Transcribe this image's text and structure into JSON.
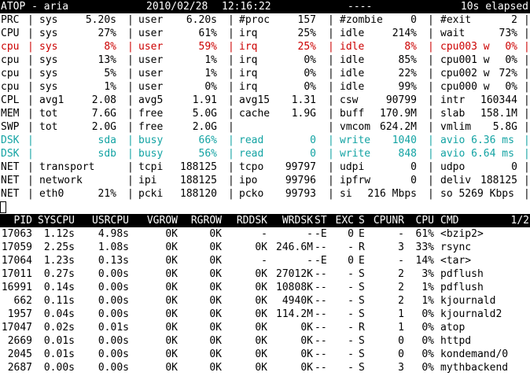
{
  "header": {
    "title": "ATOP - aria",
    "date": "2010/02/28",
    "time": "12:16:22",
    "dashes": "----",
    "elapsed": "10s elapsed"
  },
  "sys_rows": [
    {
      "cells": [
        "PRC",
        "|",
        "sys",
        "5.20s",
        "|",
        "user",
        "6.20s",
        "|",
        "#proc",
        "157",
        "|",
        "#zombie",
        "0",
        "|",
        "#exit",
        "2",
        "|"
      ],
      "tone": ""
    },
    {
      "cells": [
        "CPU",
        "|",
        "sys",
        "27%",
        "|",
        "user",
        "61%",
        "|",
        "irq",
        "25%",
        "|",
        "idle",
        "214%",
        "|",
        "wait",
        "73%",
        "|"
      ],
      "tone": ""
    },
    {
      "cells": [
        "cpu",
        "|",
        "sys",
        "8%",
        "|",
        "user",
        "59%",
        "|",
        "irq",
        "25%",
        "|",
        "idle",
        "8%",
        "|",
        "cpu003 w",
        "0%",
        "|"
      ],
      "tone": "red"
    },
    {
      "cells": [
        "cpu",
        "|",
        "sys",
        "13%",
        "|",
        "user",
        "1%",
        "|",
        "irq",
        "0%",
        "|",
        "idle",
        "85%",
        "|",
        "cpu001 w",
        "0%",
        "|"
      ],
      "tone": ""
    },
    {
      "cells": [
        "cpu",
        "|",
        "sys",
        "5%",
        "|",
        "user",
        "1%",
        "|",
        "irq",
        "0%",
        "|",
        "idle",
        "22%",
        "|",
        "cpu002 w",
        "72%",
        "|"
      ],
      "tone": ""
    },
    {
      "cells": [
        "cpu",
        "|",
        "sys",
        "1%",
        "|",
        "user",
        "0%",
        "|",
        "irq",
        "0%",
        "|",
        "idle",
        "99%",
        "|",
        "cpu000 w",
        "0%",
        "|"
      ],
      "tone": ""
    },
    {
      "cells": [
        "CPL",
        "|",
        "avg1",
        "2.08",
        "|",
        "avg5",
        "1.91",
        "|",
        "avg15",
        "1.31",
        "|",
        "csw",
        "90799",
        "|",
        "intr",
        "160344",
        "|"
      ],
      "tone": ""
    },
    {
      "cells": [
        "MEM",
        "|",
        "tot",
        "7.6G",
        "|",
        "free",
        "5.0G",
        "|",
        "cache",
        "1.9G",
        "|",
        "buff",
        "170.9M",
        "|",
        "slab",
        "158.1M",
        "|"
      ],
      "tone": ""
    },
    {
      "cells": [
        "SWP",
        "|",
        "tot",
        "2.0G",
        "|",
        "free",
        "2.0G",
        "|",
        "",
        "",
        "|",
        "vmcom",
        "624.2M",
        "|",
        "vmlim",
        "5.8G",
        "|"
      ],
      "tone": ""
    },
    {
      "cells": [
        "DSK",
        "|",
        "",
        "sda",
        "|",
        "busy",
        "66%",
        "|",
        "read",
        "0",
        "|",
        "write",
        "1040",
        "|",
        "avio 6.36 ms",
        "",
        "|"
      ],
      "tone": "cyan"
    },
    {
      "cells": [
        "DSK",
        "|",
        "",
        "sdb",
        "|",
        "busy",
        "56%",
        "|",
        "read",
        "0",
        "|",
        "write",
        "848",
        "|",
        "avio 6.64 ms",
        "",
        "|"
      ],
      "tone": "cyan"
    },
    {
      "cells": [
        "NET",
        "|",
        "transport",
        "",
        "|",
        "tcpi",
        "188125",
        "|",
        "tcpo",
        "99797",
        "|",
        "udpi",
        "0",
        "|",
        "udpo",
        "0",
        "|"
      ],
      "tone": ""
    },
    {
      "cells": [
        "NET",
        "|",
        "network",
        "",
        "|",
        "ipi",
        "188125",
        "|",
        "ipo",
        "99796",
        "|",
        "ipfrw",
        "0",
        "|",
        "deliv",
        "188125",
        "|"
      ],
      "tone": ""
    },
    {
      "cells": [
        "NET",
        "|",
        "eth0",
        "21%",
        "|",
        "pcki",
        "188120",
        "|",
        "pcko",
        "99793",
        "|",
        "si",
        "216 Mbps",
        "|",
        "so 5269 Kbps",
        "",
        "|"
      ],
      "tone": ""
    }
  ],
  "proc_header": [
    "PID",
    "SYSCPU",
    "USRCPU",
    "VGROW",
    "RGROW",
    "RDDSK",
    "WRDSK",
    "ST",
    "EXC",
    "S",
    "CPUNR",
    "CPU",
    "CMD",
    "1/2"
  ],
  "processes": [
    [
      "17063",
      "1.12s",
      "4.98s",
      "0K",
      "0K",
      "-",
      "-",
      "-E",
      "0",
      "E",
      "-",
      "61%",
      "<bzip2>"
    ],
    [
      "17059",
      "2.25s",
      "1.08s",
      "0K",
      "0K",
      "0K",
      "246.6M",
      "--",
      "-",
      "R",
      "3",
      "33%",
      "rsync"
    ],
    [
      "17064",
      "1.23s",
      "0.13s",
      "0K",
      "0K",
      "-",
      "-",
      "-E",
      "0",
      "E",
      "-",
      "14%",
      "<tar>"
    ],
    [
      "17011",
      "0.27s",
      "0.00s",
      "0K",
      "0K",
      "0K",
      "27012K",
      "--",
      "-",
      "S",
      "2",
      "3%",
      "pdflush"
    ],
    [
      "16991",
      "0.14s",
      "0.00s",
      "0K",
      "0K",
      "0K",
      "10808K",
      "--",
      "-",
      "S",
      "2",
      "1%",
      "pdflush"
    ],
    [
      "662",
      "0.11s",
      "0.00s",
      "0K",
      "0K",
      "0K",
      "4940K",
      "--",
      "-",
      "S",
      "2",
      "1%",
      "kjournald"
    ],
    [
      "1957",
      "0.04s",
      "0.00s",
      "0K",
      "0K",
      "0K",
      "114.2M",
      "--",
      "-",
      "S",
      "1",
      "0%",
      "kjournald2"
    ],
    [
      "17047",
      "0.02s",
      "0.01s",
      "0K",
      "0K",
      "0K",
      "0K",
      "--",
      "-",
      "R",
      "1",
      "0%",
      "atop"
    ],
    [
      "2669",
      "0.01s",
      "0.00s",
      "0K",
      "0K",
      "0K",
      "0K",
      "--",
      "-",
      "S",
      "0",
      "0%",
      "httpd"
    ],
    [
      "2045",
      "0.01s",
      "0.00s",
      "0K",
      "0K",
      "0K",
      "0K",
      "--",
      "-",
      "S",
      "0",
      "0%",
      "kondemand/0"
    ],
    [
      "2687",
      "0.00s",
      "0.00s",
      "0K",
      "0K",
      "0K",
      "0K",
      "--",
      "-",
      "S",
      "3",
      "0%",
      "mythbackend"
    ]
  ]
}
